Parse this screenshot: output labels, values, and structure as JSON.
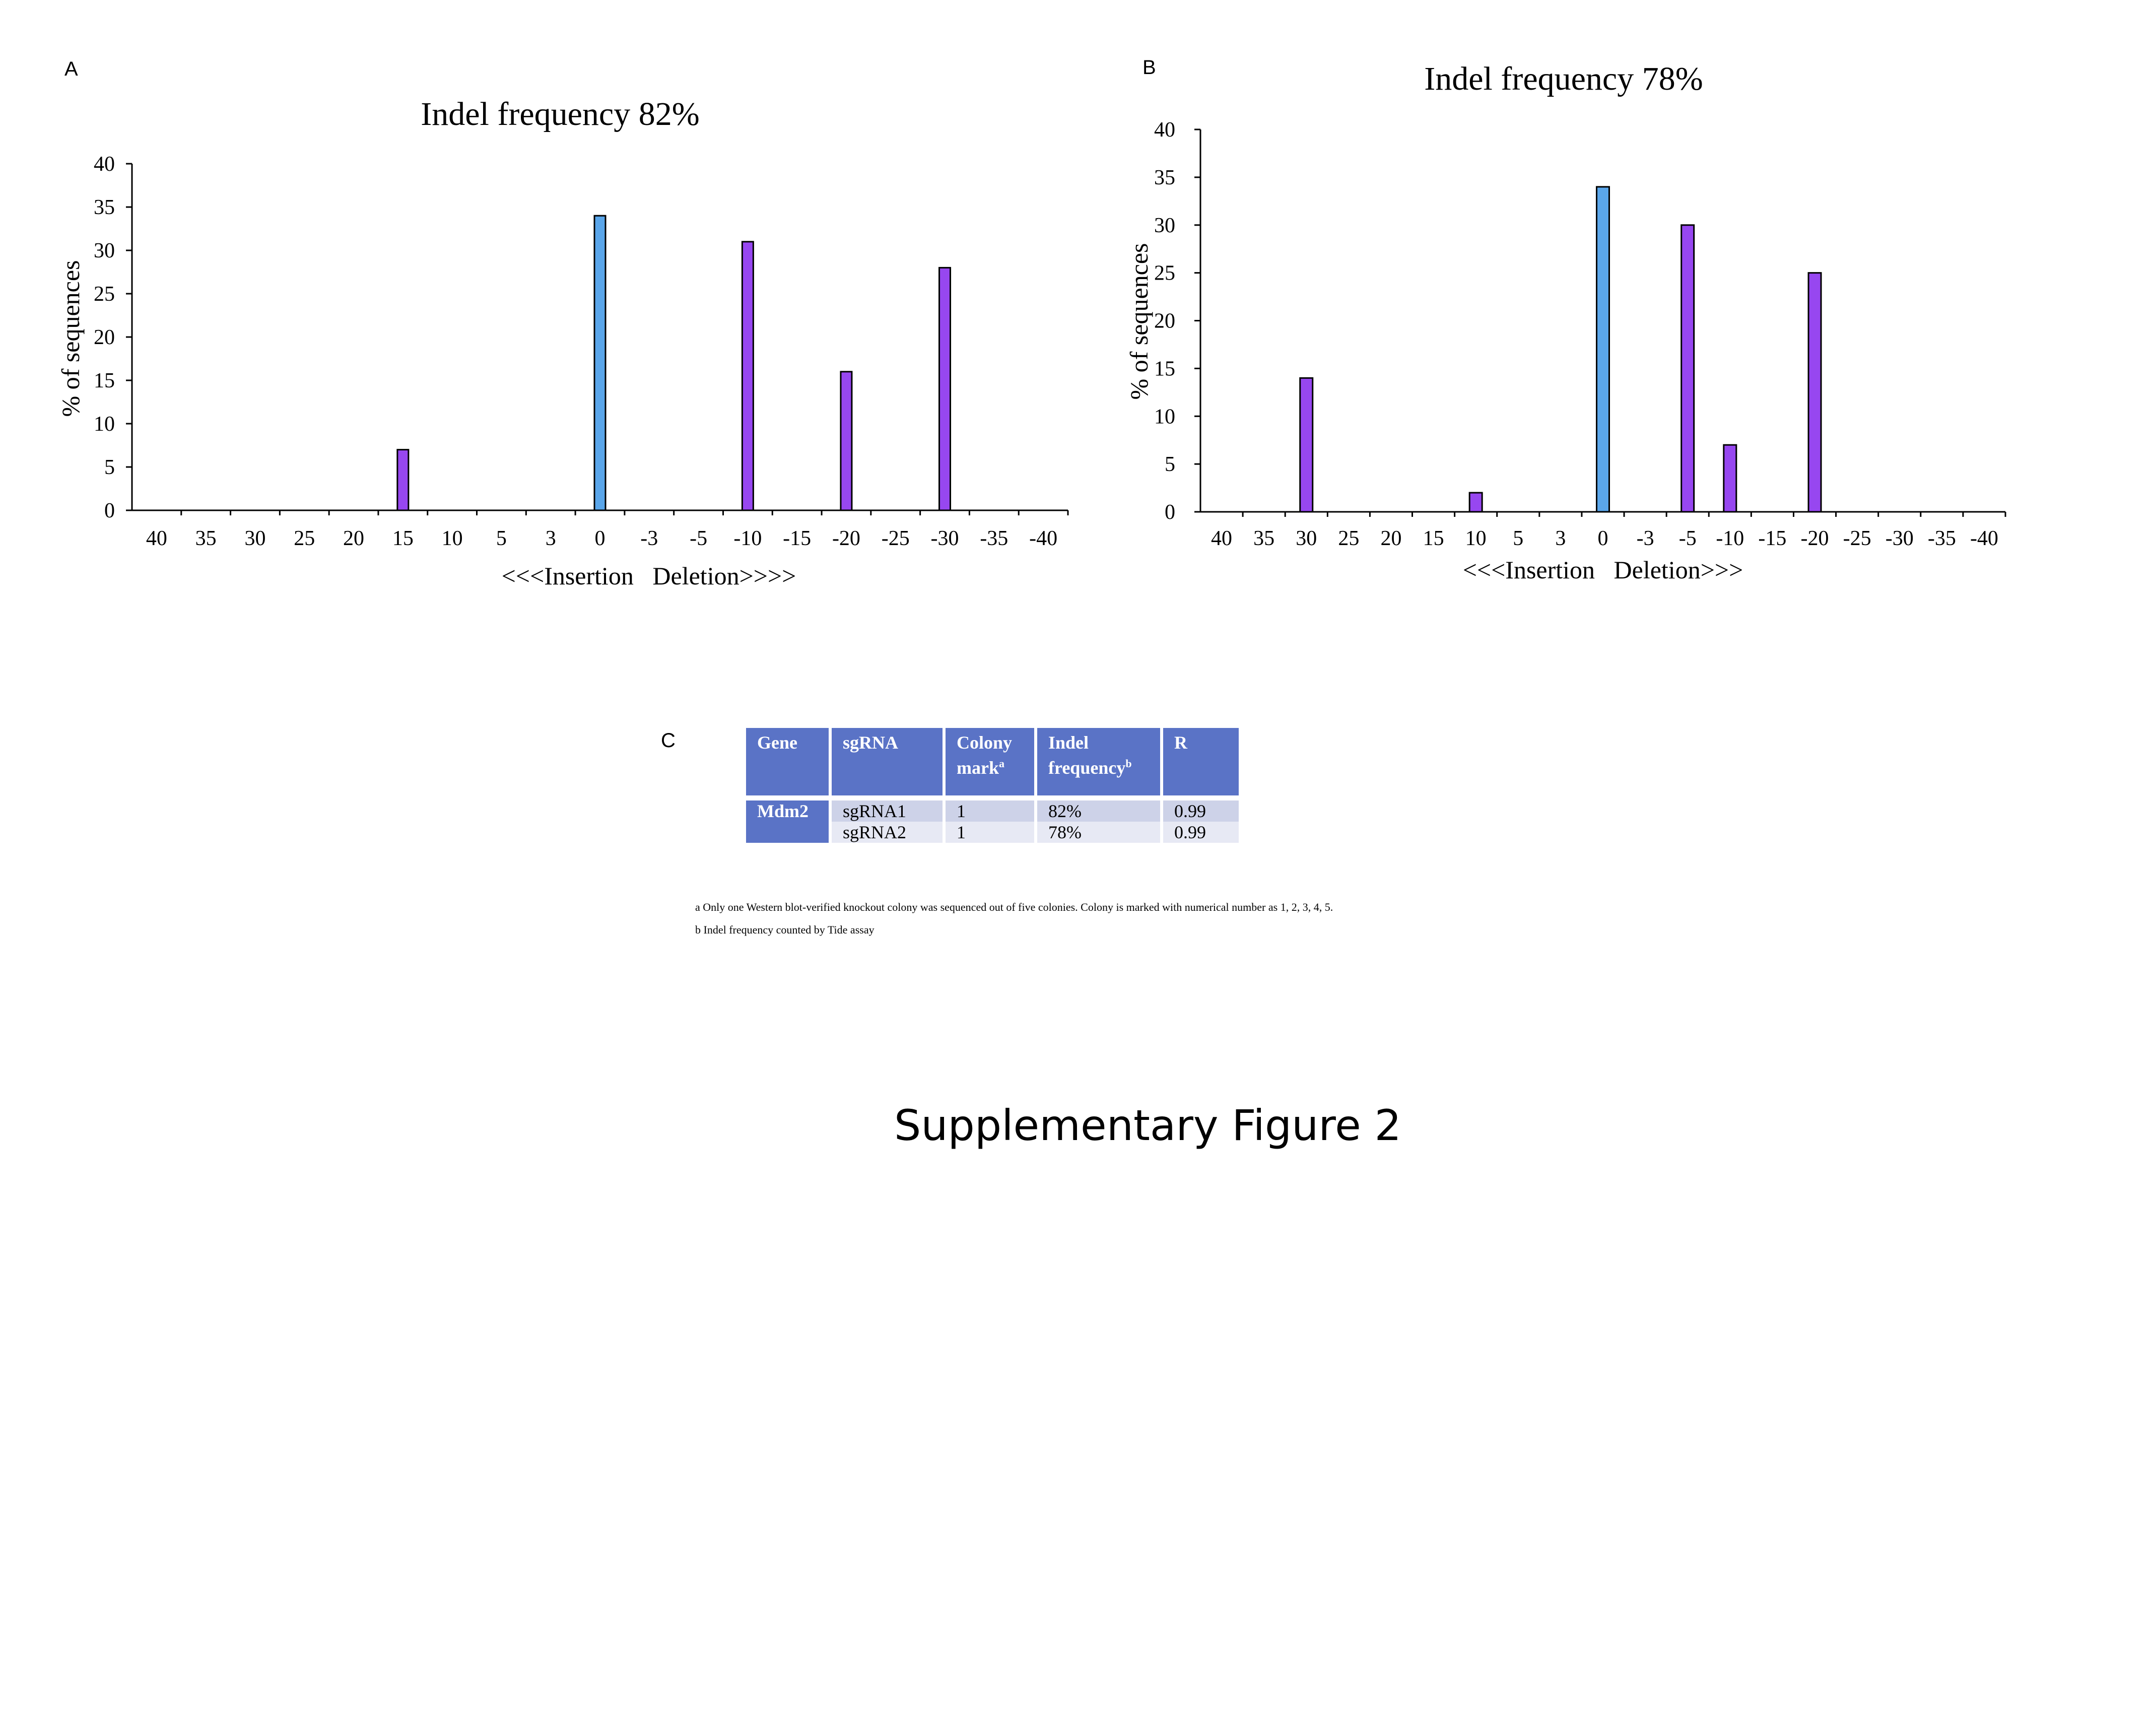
{
  "panels": {
    "a": "A",
    "b": "B",
    "c": "C"
  },
  "colors": {
    "wildtype": "#5aa6ea",
    "indel": "#9747f0",
    "header": "#5a73c6"
  },
  "chart_data": [
    {
      "type": "bar",
      "title": "Indel frequency 82%",
      "xlabel": "<<<Insertion   Deletion>>>>",
      "ylabel": "% of sequences",
      "categories": [
        "40",
        "35",
        "30",
        "25",
        "20",
        "15",
        "10",
        "5",
        "3",
        "0",
        "-3",
        "-5",
        "-10",
        "-15",
        "-20",
        "-25",
        "-30",
        "-35",
        "-40"
      ],
      "values": [
        0,
        0,
        0,
        0,
        0,
        7,
        0,
        0,
        0,
        34,
        0,
        0,
        31,
        0,
        16,
        0,
        28,
        0,
        0
      ],
      "highlight_category": "0",
      "ylim": [
        0,
        40
      ],
      "yticks": [
        0,
        5,
        10,
        15,
        20,
        25,
        30,
        35,
        40
      ],
      "grid": false
    },
    {
      "type": "bar",
      "title": "Indel frequency 78%",
      "xlabel": "<<<Insertion   Deletion>>>",
      "ylabel": "% of sequences",
      "categories": [
        "40",
        "35",
        "30",
        "25",
        "20",
        "15",
        "10",
        "5",
        "3",
        "0",
        "-3",
        "-5",
        "-10",
        "-15",
        "-20",
        "-25",
        "-30",
        "-35",
        "-40"
      ],
      "values": [
        0,
        0,
        14,
        0,
        0,
        0,
        2,
        0,
        0,
        34,
        0,
        30,
        7,
        0,
        25,
        0,
        0,
        0,
        0
      ],
      "highlight_category": "0",
      "ylim": [
        0,
        40
      ],
      "yticks": [
        0,
        5,
        10,
        15,
        20,
        25,
        30,
        35,
        40
      ],
      "grid": false
    }
  ],
  "table": {
    "headers": {
      "gene": "Gene",
      "sgrna": "sgRNA",
      "colony": "Colony mark",
      "colony_sup": "a",
      "indel": "Indel frequency",
      "indel_sup": "b",
      "r": "R"
    },
    "gene": "Mdm2",
    "rows": [
      {
        "sgrna": "sgRNA1",
        "colony": "1",
        "indel": "82%",
        "r": "0.99"
      },
      {
        "sgrna": "sgRNA2",
        "colony": "1",
        "indel": "78%",
        "r": "0.99"
      }
    ]
  },
  "footnotes": {
    "a": "a Only one Western blot-verified knockout colony was sequenced out of five colonies. Colony is marked with numerical number as 1, 2, 3, 4, 5.",
    "b": "b Indel frequency counted by Tide assay"
  },
  "caption": "Supplementary Figure 2"
}
